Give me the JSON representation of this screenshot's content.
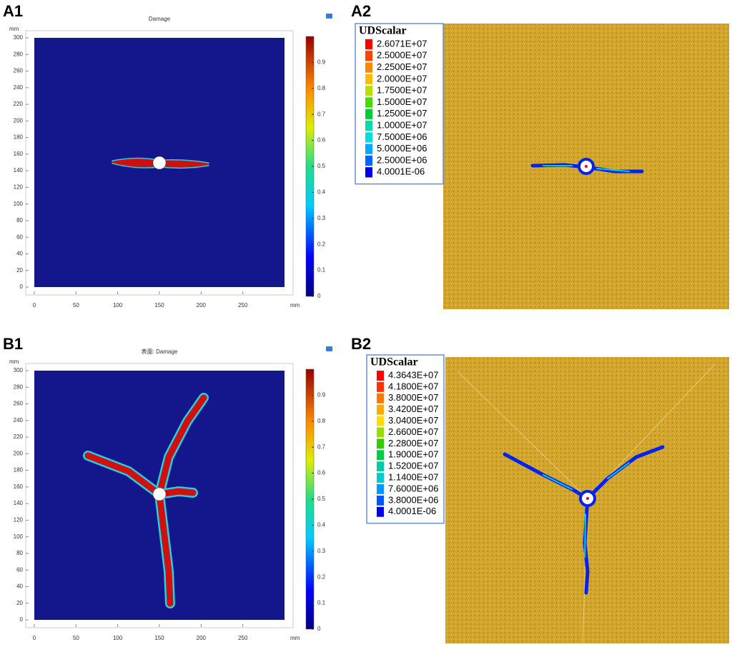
{
  "panels": [
    {
      "label": "A1",
      "title": "Damage",
      "y_unit": "mm",
      "x_unit": "mm",
      "xlim": [
        0,
        300
      ],
      "ylim": [
        0,
        300
      ],
      "xticks": [
        0,
        50,
        100,
        150,
        200,
        250
      ],
      "yticks": [
        0,
        20,
        40,
        60,
        80,
        100,
        120,
        140,
        160,
        180,
        200,
        220,
        240,
        260,
        280,
        300
      ],
      "clim": [
        0,
        1
      ],
      "colorbar_ticks": [
        0,
        0.1,
        0.2,
        0.3,
        0.4,
        0.5,
        0.6,
        0.7,
        0.8,
        0.9
      ]
    },
    {
      "label": "A2",
      "legend_title": "UDScalar",
      "legend_entries": [
        "2.6071E+07",
        "2.5000E+07",
        "2.2500E+07",
        "2.0000E+07",
        "1.7500E+07",
        "1.5000E+07",
        "1.2500E+07",
        "1.0000E+07",
        "7.5000E+06",
        "5.0000E+06",
        "2.5000E+06",
        "4.0001E-06"
      ],
      "legend_colors": [
        "#ff0000",
        "#ff4400",
        "#ff8800",
        "#ffbb00",
        "#bbdd00",
        "#44dd00",
        "#00cc33",
        "#00ddaa",
        "#00dddd",
        "#00aaff",
        "#0066ff",
        "#0000ee"
      ]
    },
    {
      "label": "B1",
      "title": "表面: Damage",
      "y_unit": "mm",
      "x_unit": "mm",
      "xlim": [
        0,
        300
      ],
      "ylim": [
        0,
        300
      ],
      "xticks": [
        0,
        50,
        100,
        150,
        200,
        250
      ],
      "yticks": [
        0,
        20,
        40,
        60,
        80,
        100,
        120,
        140,
        160,
        180,
        200,
        220,
        240,
        260,
        280,
        300
      ],
      "clim": [
        0,
        1
      ],
      "colorbar_ticks": [
        0,
        0.1,
        0.2,
        0.3,
        0.4,
        0.5,
        0.6,
        0.7,
        0.8,
        0.9
      ]
    },
    {
      "label": "B2",
      "legend_title": "UDScalar",
      "legend_entries": [
        "4.3643E+07",
        "4.1800E+07",
        "3.8000E+07",
        "3.4200E+07",
        "3.0400E+07",
        "2.6600E+07",
        "2.2800E+07",
        "1.9000E+07",
        "1.5200E+07",
        "1.1400E+07",
        "7.6000E+06",
        "3.8000E+06",
        "4.0001E-06"
      ],
      "legend_colors": [
        "#ff0000",
        "#ff3300",
        "#ff7700",
        "#ffaa00",
        "#ffdd00",
        "#99dd00",
        "#33cc00",
        "#00cc44",
        "#00ccaa",
        "#00cccc",
        "#0099ff",
        "#0055ff",
        "#0000ee"
      ]
    }
  ]
}
